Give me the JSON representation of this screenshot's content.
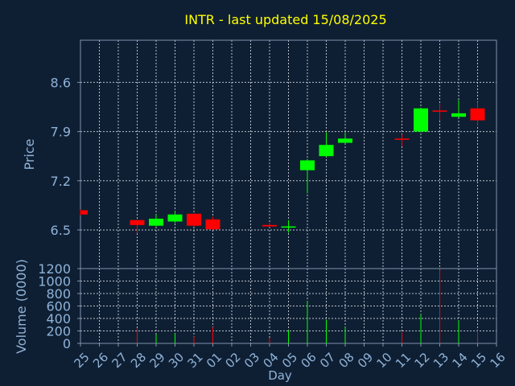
{
  "chart_data": {
    "type": "candlestick",
    "title": "INTR - last updated 15/08/2025",
    "price_ylabel": "Price",
    "volume_ylabel": "Volume (0000)",
    "xlabel": "Day",
    "price_ylim": [
      5.95,
      9.2
    ],
    "price_ticks": [
      "6.5",
      "7.2",
      "7.9",
      "8.6"
    ],
    "volume_ylim": [
      0,
      1200
    ],
    "volume_ticks": [
      "0",
      "200",
      "400",
      "600",
      "800",
      "1000",
      "1200"
    ],
    "grid": true,
    "x_ticks": [
      "25",
      "26",
      "27",
      "28",
      "29",
      "30",
      "31",
      "01",
      "02",
      "03",
      "04",
      "05",
      "06",
      "07",
      "08",
      "09",
      "10",
      "11",
      "12",
      "13",
      "14",
      "15",
      "16"
    ],
    "candles": [
      {
        "day": "25",
        "open": 6.78,
        "close": 6.72,
        "high": 6.79,
        "low": 6.71,
        "volume": 0
      },
      {
        "day": "28",
        "open": 6.64,
        "close": 6.57,
        "high": 6.65,
        "low": 6.45,
        "volume": 240
      },
      {
        "day": "29",
        "open": 6.56,
        "close": 6.66,
        "high": 6.72,
        "low": 6.55,
        "volume": 150
      },
      {
        "day": "30",
        "open": 6.62,
        "close": 6.72,
        "high": 6.77,
        "low": 6.6,
        "volume": 160
      },
      {
        "day": "31",
        "open": 6.73,
        "close": 6.56,
        "high": 6.74,
        "low": 6.55,
        "volume": 110
      },
      {
        "day": "01",
        "open": 6.65,
        "close": 6.51,
        "high": 6.69,
        "low": 6.5,
        "volume": 260
      },
      {
        "day": "04",
        "open": 6.57,
        "close": 6.55,
        "high": 6.6,
        "low": 6.54,
        "volume": 90
      },
      {
        "day": "05",
        "open": 6.54,
        "close": 6.55,
        "high": 6.64,
        "low": 6.46,
        "volume": 210
      },
      {
        "day": "06",
        "open": 7.35,
        "close": 7.49,
        "high": 7.51,
        "low": 7.02,
        "volume": 680
      },
      {
        "day": "07",
        "open": 7.55,
        "close": 7.71,
        "high": 7.89,
        "low": 7.54,
        "volume": 380
      },
      {
        "day": "08",
        "open": 7.74,
        "close": 7.8,
        "high": 7.89,
        "low": 7.73,
        "volume": 260
      },
      {
        "day": "11",
        "open": 7.8,
        "close": 7.79,
        "high": 7.86,
        "low": 7.69,
        "volume": 180
      },
      {
        "day": "12",
        "open": 7.9,
        "close": 8.23,
        "high": 8.24,
        "low": 7.89,
        "volume": 470
      },
      {
        "day": "13",
        "open": 8.2,
        "close": 8.19,
        "high": 8.3,
        "low": 8.06,
        "volume": 1190
      },
      {
        "day": "14",
        "open": 8.11,
        "close": 8.16,
        "high": 8.35,
        "low": 8.1,
        "volume": 370
      },
      {
        "day": "15",
        "open": 8.23,
        "close": 8.06,
        "high": 8.32,
        "low": 7.99,
        "volume": 210
      }
    ],
    "colors": {
      "up": "#00ff00",
      "down": "#ff0000",
      "background": "#0f1f33",
      "text": "#8fb3d9",
      "title": "#ffff00",
      "grid": "#d8dde6"
    }
  }
}
